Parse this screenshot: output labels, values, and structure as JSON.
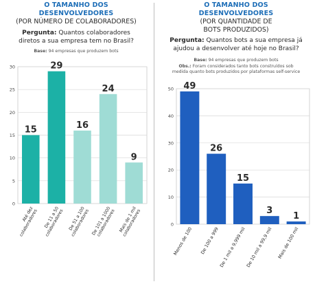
{
  "chart_data": [
    {
      "type": "bar",
      "title": "O TAMANHO DOS",
      "title_line2": "DESENVOLVEDORES",
      "subtitle": "(POR NÚMERO DE COLABORADORES)",
      "question_label": "Pergunta:",
      "question_text_1": "Quantos colaboradores",
      "question_text_2": "diretos a sua empresa tem no Brasil?",
      "base_label": "Base:",
      "base_text": "94 empresas que produzem bots",
      "categories": [
        "Até dez colaboradores",
        "De 11 a 50 colaboradores",
        "De 51 a 100 colaboradores",
        "De 101 a 1000 colaboradores",
        "Mais de 1 mil colaboradores"
      ],
      "category_lines": [
        [
          "Até dez",
          "colaboradores"
        ],
        [
          "De 11 a 50",
          "colaboradores"
        ],
        [
          "De 51 a 100",
          "colaboradores"
        ],
        [
          "De 101 a 1000",
          "colaboradores"
        ],
        [
          "Mais de 1 mil",
          "colaboradores"
        ]
      ],
      "values": [
        15,
        29,
        16,
        24,
        9
      ],
      "value_labels": [
        "15",
        "29",
        "16",
        "24",
        "9"
      ],
      "bar_colors": [
        "#1cb1a6",
        "#1cb1a6",
        "#9fdcd5",
        "#9fdcd5",
        "#9fdcd5"
      ],
      "ylim": [
        0,
        30
      ],
      "yticks": [
        "0",
        "5",
        "10",
        "15",
        "20",
        "25",
        "30"
      ],
      "grid": true,
      "xlabel": "",
      "ylabel": ""
    },
    {
      "type": "bar",
      "title": "O TAMANHO DOS",
      "title_line2": "DESENVOLVEDORES",
      "subtitle": "(POR QUANTIDADE DE",
      "subtitle_line2": "BOTS PRODUZIDOS)",
      "question_label": "Pergunta:",
      "question_text_1": "Quantos bots a sua empresa já",
      "question_text_2": "ajudou a desenvolver até hoje no Brasil?",
      "base_label": "Base:",
      "base_text": "94 empresas que produzem bots",
      "obs_label": "Obs.:",
      "obs_text_1": "Foram considerados tanto bots construídos sob",
      "obs_text_2": "medida quanto bots produzidos por plataformas self-service",
      "categories": [
        "Menos de 100",
        "De 100 a 999",
        "De 1 mil a 9,999 mil",
        "De 10 mil a 99,9 mil",
        "Mais de 100 mil"
      ],
      "values": [
        49,
        26,
        15,
        3,
        1
      ],
      "value_labels": [
        "49",
        "26",
        "15",
        "3",
        "1"
      ],
      "bar_colors": [
        "#1f5fbf",
        "#1f5fbf",
        "#1f5fbf",
        "#1f5fbf",
        "#1f5fbf"
      ],
      "ylim": [
        0,
        50
      ],
      "yticks": [
        "0",
        "10",
        "20",
        "30",
        "40",
        "50"
      ],
      "grid": true,
      "xlabel": "",
      "ylabel": ""
    }
  ]
}
